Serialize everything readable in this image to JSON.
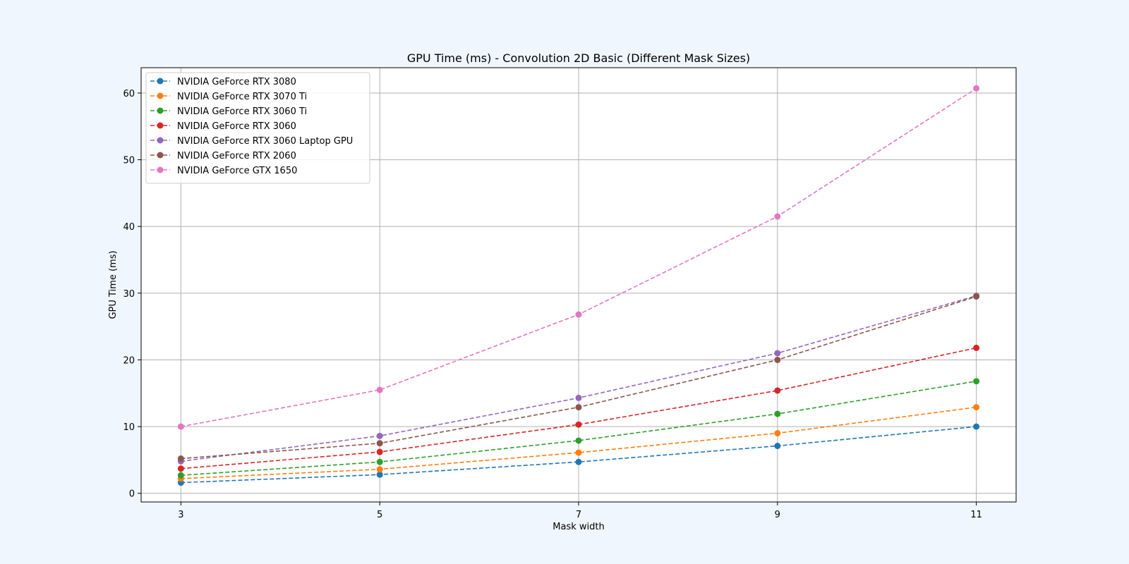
{
  "chart_data": {
    "type": "line",
    "title": "GPU Time (ms) - Convolution 2D Basic (Different Mask Sizes)",
    "xlabel": "Mask width",
    "ylabel": "GPU Time (ms)",
    "x": [
      3,
      5,
      7,
      9,
      11
    ],
    "x_ticks": [
      "3",
      "5",
      "7",
      "9",
      "11"
    ],
    "xlim": [
      2.6,
      11.4
    ],
    "y_ticks": [
      "0",
      "10",
      "20",
      "30",
      "40",
      "50",
      "60"
    ],
    "ylim": [
      -1.3,
      63.8
    ],
    "grid": true,
    "legend_position": "top-left",
    "line_style": "dashed",
    "marker": "circle",
    "series": [
      {
        "name": "NVIDIA GeForce RTX 3080",
        "color": "#1f77b4",
        "values": [
          1.6,
          2.8,
          4.7,
          7.1,
          10.0
        ]
      },
      {
        "name": "NVIDIA GeForce RTX 3070 Ti",
        "color": "#ff7f0e",
        "values": [
          2.2,
          3.6,
          6.1,
          9.0,
          12.9
        ]
      },
      {
        "name": "NVIDIA GeForce RTX 3060 Ti",
        "color": "#2ca02c",
        "values": [
          2.7,
          4.7,
          7.9,
          11.9,
          16.8
        ]
      },
      {
        "name": "NVIDIA GeForce RTX 3060",
        "color": "#d62728",
        "values": [
          3.7,
          6.2,
          10.3,
          15.4,
          21.8
        ]
      },
      {
        "name": "NVIDIA GeForce RTX 3060 Laptop GPU",
        "color": "#9467bd",
        "values": [
          4.8,
          8.6,
          14.3,
          21.0,
          29.6
        ]
      },
      {
        "name": "NVIDIA GeForce RTX 2060",
        "color": "#8c564b",
        "values": [
          5.2,
          7.5,
          12.9,
          20.0,
          29.5
        ]
      },
      {
        "name": "NVIDIA GeForce GTX 1650",
        "color": "#e377c2",
        "values": [
          10.0,
          15.5,
          26.8,
          41.5,
          60.7
        ]
      }
    ]
  }
}
